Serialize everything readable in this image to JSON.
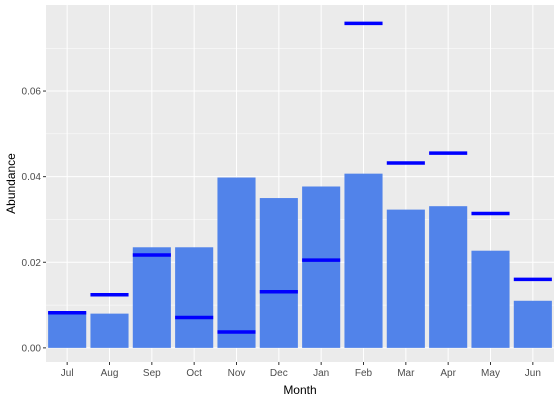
{
  "chart_data": {
    "type": "bar",
    "xlabel": "Month",
    "ylabel": "Abundance",
    "categories": [
      "Jul",
      "Aug",
      "Sep",
      "Oct",
      "Nov",
      "Dec",
      "Jan",
      "Feb",
      "Mar",
      "Apr",
      "May",
      "Jun"
    ],
    "series": [
      {
        "values": [
          0.0085,
          0.008,
          0.0235,
          0.0235,
          0.0398,
          0.035,
          0.0377,
          0.0407,
          0.0323,
          0.0331,
          0.0227,
          0.011
        ]
      },
      {
        "values": [
          0.0082,
          0.0124,
          0.0217,
          0.0071,
          0.0037,
          0.0131,
          0.0205,
          0.0758,
          0.0432,
          0.0455,
          0.0314,
          0.016
        ]
      }
    ],
    "ylim": [
      -0.0033,
      0.0801
    ],
    "y_ticks": [
      "0.00",
      "0.02",
      "0.04",
      "0.06"
    ],
    "grid": true,
    "legend": "none",
    "colors": {
      "bar": "#5183ea",
      "marker": "#0000ff",
      "panel": "#ebebeb",
      "grid": "#ffffff"
    }
  }
}
